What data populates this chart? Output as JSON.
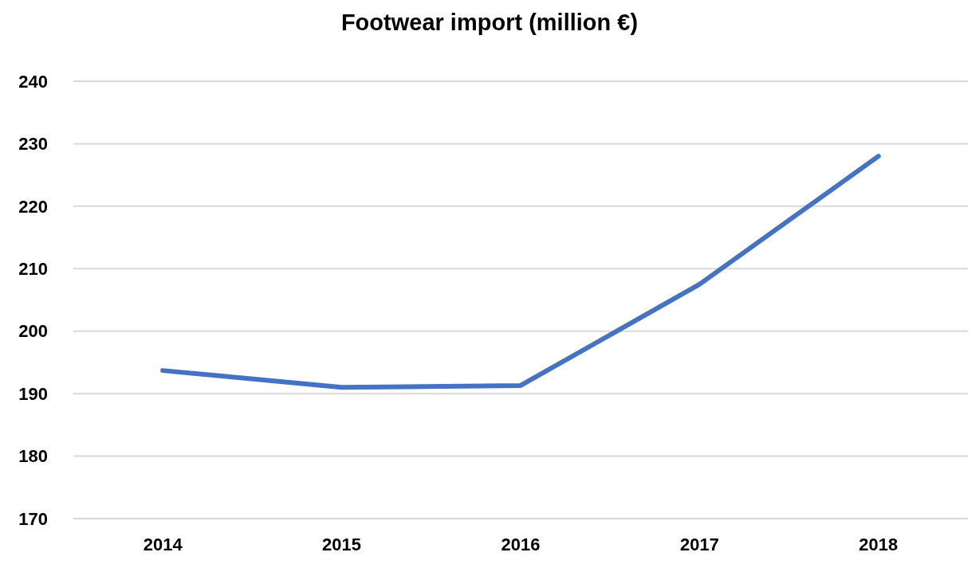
{
  "chart_data": {
    "type": "line",
    "title": "Footwear import (million €)",
    "categories": [
      "2014",
      "2015",
      "2016",
      "2017",
      "2018"
    ],
    "series": [
      {
        "color": "#4472c4",
        "values": [
          193.7,
          191.0,
          191.3,
          207.5,
          228.0
        ]
      }
    ],
    "ylim": [
      170,
      240
    ],
    "yticks": [
      170,
      180,
      190,
      200,
      210,
      220,
      230,
      240
    ],
    "grid": "y",
    "marker": "none",
    "line_style": "solid"
  }
}
